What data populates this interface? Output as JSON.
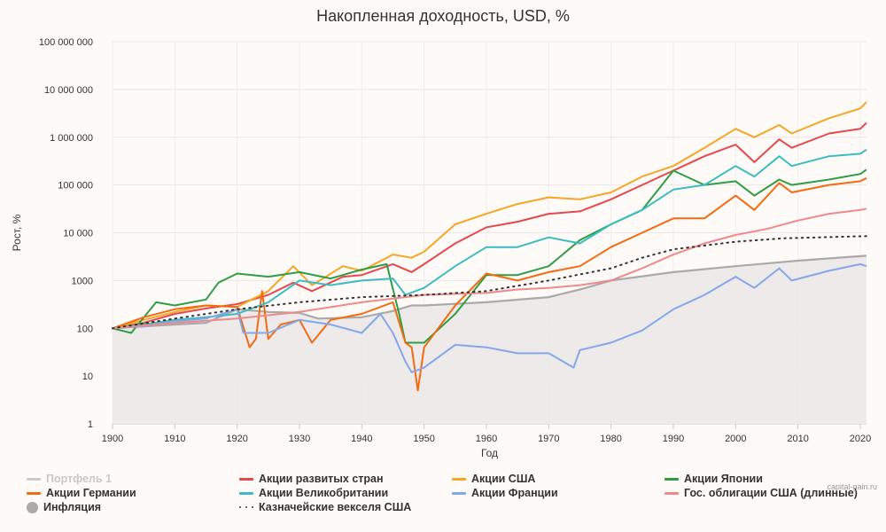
{
  "title": "Накопленная доходность, USD, %",
  "credit": "capital-gain.ru",
  "chart_data": {
    "type": "line",
    "title": "Накопленная доходность, USD, %",
    "xlabel": "Год",
    "ylabel": "Рост, %",
    "yscale": "log",
    "xlim": [
      1900,
      2021
    ],
    "ylim": [
      1,
      100000000
    ],
    "xticks": [
      "1900",
      "1910",
      "1920",
      "1930",
      "1940",
      "1950",
      "1960",
      "1970",
      "1980",
      "1990",
      "2000",
      "2010",
      "2020"
    ],
    "yticks": [
      "1",
      "10",
      "100",
      "1000",
      "10 000",
      "100 000",
      "1 000 000",
      "10 000 000",
      "100 000 000"
    ],
    "grid": true,
    "legend_position": "bottom",
    "series": [
      {
        "name": "Портфель 1",
        "color": "#cccccc",
        "style": "hidden",
        "x": [],
        "values": []
      },
      {
        "name": "Акции развитых стран",
        "color": "#e5484d",
        "style": "line",
        "x": [
          1900,
          1905,
          1910,
          1915,
          1920,
          1925,
          1929,
          1932,
          1937,
          1940,
          1945,
          1948,
          1950,
          1955,
          1960,
          1965,
          1970,
          1975,
          1980,
          1985,
          1990,
          1995,
          2000,
          2003,
          2007,
          2009,
          2015,
          2020,
          2021
        ],
        "values": [
          100,
          130,
          200,
          260,
          320,
          500,
          900,
          600,
          1200,
          1300,
          2200,
          1500,
          2200,
          6000,
          13000,
          17000,
          25000,
          28000,
          50000,
          100000,
          200000,
          400000,
          700000,
          300000,
          900000,
          600000,
          1200000,
          1500000,
          2000000
        ]
      },
      {
        "name": "Акции США",
        "color": "#f5a623",
        "style": "line",
        "x": [
          1900,
          1905,
          1910,
          1915,
          1920,
          1925,
          1929,
          1932,
          1937,
          1940,
          1945,
          1948,
          1950,
          1955,
          1960,
          1965,
          1970,
          1975,
          1980,
          1985,
          1990,
          1995,
          2000,
          2003,
          2007,
          2009,
          2015,
          2020,
          2021
        ],
        "values": [
          100,
          150,
          220,
          300,
          280,
          600,
          2000,
          800,
          2000,
          1600,
          3500,
          3000,
          4000,
          15000,
          25000,
          40000,
          55000,
          50000,
          70000,
          150000,
          250000,
          600000,
          1500000,
          1000000,
          1800000,
          1200000,
          2500000,
          4000000,
          5500000
        ]
      },
      {
        "name": "Акции Японии",
        "color": "#2e9e44",
        "style": "line",
        "x": [
          1900,
          1903,
          1907,
          1910,
          1915,
          1917,
          1920,
          1925,
          1930,
          1935,
          1940,
          1944,
          1946,
          1947,
          1950,
          1955,
          1960,
          1965,
          1970,
          1975,
          1980,
          1985,
          1990,
          1995,
          2000,
          2003,
          2007,
          2009,
          2015,
          2020,
          2021
        ],
        "values": [
          100,
          80,
          350,
          300,
          400,
          900,
          1400,
          1200,
          1500,
          1100,
          1700,
          2200,
          200,
          50,
          50,
          200,
          1300,
          1300,
          2000,
          7000,
          15000,
          30000,
          200000,
          100000,
          120000,
          60000,
          130000,
          100000,
          130000,
          170000,
          210000
        ]
      },
      {
        "name": "Акции Германии",
        "color": "#f26b0f",
        "style": "line",
        "x": [
          1900,
          1905,
          1910,
          1915,
          1920,
          1922,
          1923,
          1924,
          1925,
          1927,
          1930,
          1932,
          1935,
          1940,
          1945,
          1947,
          1948,
          1949,
          1950,
          1955,
          1960,
          1965,
          1970,
          1975,
          1980,
          1985,
          1990,
          1995,
          2000,
          2003,
          2007,
          2009,
          2015,
          2020,
          2021
        ],
        "values": [
          100,
          170,
          250,
          300,
          280,
          40,
          60,
          600,
          60,
          120,
          150,
          50,
          150,
          200,
          350,
          50,
          40,
          5,
          40,
          300,
          1400,
          1000,
          1500,
          2000,
          5000,
          10000,
          20000,
          20000,
          60000,
          30000,
          110000,
          70000,
          100000,
          120000,
          140000
        ]
      },
      {
        "name": "Акции Великобритании",
        "color": "#3bbcc2",
        "style": "line",
        "x": [
          1900,
          1905,
          1910,
          1915,
          1920,
          1925,
          1930,
          1935,
          1940,
          1945,
          1947,
          1950,
          1955,
          1960,
          1965,
          1970,
          1975,
          1980,
          1985,
          1990,
          1995,
          2000,
          2003,
          2007,
          2009,
          2015,
          2020,
          2021
        ],
        "values": [
          100,
          120,
          150,
          170,
          200,
          350,
          1000,
          800,
          1000,
          1100,
          500,
          700,
          2000,
          5000,
          5000,
          8000,
          6000,
          15000,
          30000,
          80000,
          100000,
          250000,
          150000,
          400000,
          250000,
          400000,
          450000,
          550000
        ]
      },
      {
        "name": "Акции Франции",
        "color": "#82a8ea",
        "style": "line",
        "x": [
          1900,
          1905,
          1910,
          1915,
          1920,
          1921,
          1925,
          1930,
          1935,
          1940,
          1943,
          1945,
          1947,
          1948,
          1950,
          1955,
          1960,
          1965,
          1970,
          1974,
          1975,
          1980,
          1985,
          1990,
          1995,
          2000,
          2003,
          2007,
          2009,
          2015,
          2020,
          2021
        ],
        "values": [
          100,
          110,
          140,
          160,
          250,
          80,
          80,
          150,
          120,
          80,
          200,
          80,
          20,
          12,
          15,
          45,
          40,
          30,
          30,
          15,
          35,
          50,
          90,
          250,
          500,
          1200,
          700,
          1800,
          1000,
          1600,
          2200,
          2000
        ]
      },
      {
        "name": "Гос. облигации США (длинные)",
        "color": "#ee8a8a",
        "style": "line",
        "x": [
          1900,
          1910,
          1920,
          1930,
          1940,
          1950,
          1960,
          1965,
          1970,
          1975,
          1980,
          1985,
          1990,
          1995,
          2000,
          2005,
          2010,
          2015,
          2020,
          2021
        ],
        "values": [
          100,
          130,
          160,
          220,
          350,
          500,
          550,
          650,
          700,
          800,
          1000,
          1800,
          3500,
          6000,
          9000,
          12000,
          18000,
          25000,
          30000,
          32000
        ]
      },
      {
        "name": "Инфляция",
        "color": "#aaaaaa",
        "style": "area",
        "x": [
          1900,
          1910,
          1915,
          1920,
          1925,
          1930,
          1933,
          1940,
          1945,
          1948,
          1950,
          1960,
          1970,
          1975,
          1980,
          1990,
          2000,
          2010,
          2021
        ],
        "values": [
          100,
          120,
          130,
          250,
          220,
          210,
          160,
          170,
          230,
          300,
          300,
          350,
          450,
          650,
          1000,
          1500,
          2000,
          2600,
          3300
        ]
      },
      {
        "name": "Казначейские векселя США",
        "color": "#333333",
        "style": "dotted",
        "x": [
          1900,
          1910,
          1920,
          1930,
          1940,
          1950,
          1960,
          1970,
          1980,
          1985,
          1990,
          2000,
          2008,
          2010,
          2021
        ],
        "values": [
          100,
          160,
          250,
          350,
          450,
          500,
          600,
          1000,
          1800,
          3000,
          4500,
          6500,
          7700,
          7800,
          8500
        ]
      }
    ]
  }
}
